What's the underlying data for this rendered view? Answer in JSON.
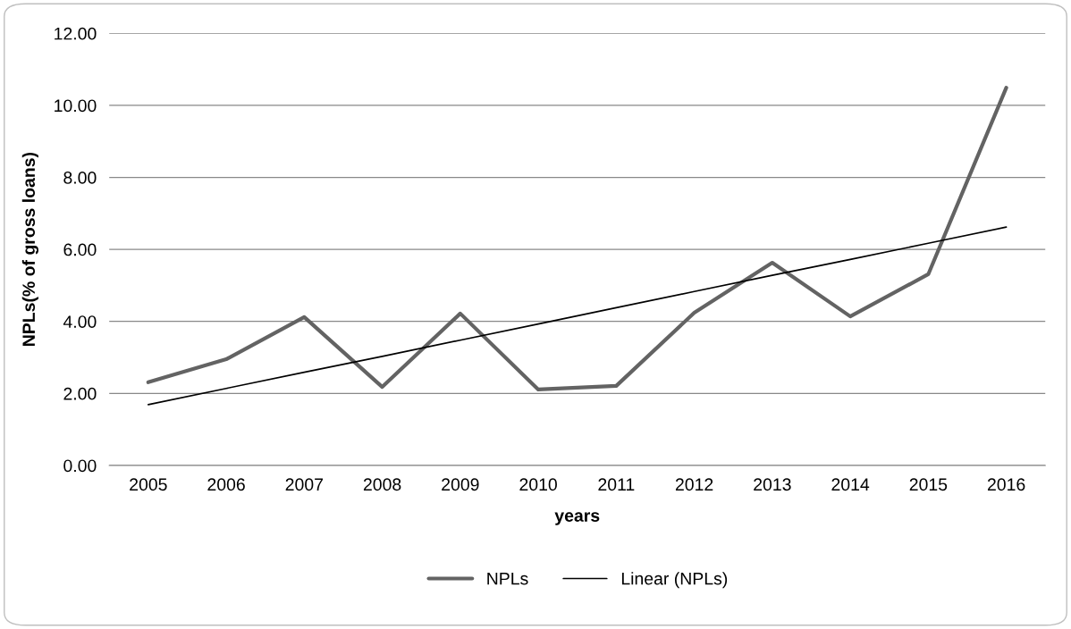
{
  "chart_data": {
    "type": "line",
    "xlabel": "years",
    "ylabel": "NPLs(% of gross loans)",
    "categories": [
      "2005",
      "2006",
      "2007",
      "2008",
      "2009",
      "2010",
      "2011",
      "2012",
      "2013",
      "2014",
      "2015",
      "2016"
    ],
    "series": [
      {
        "name": "NPLs",
        "color": "#636363",
        "values": [
          2.31,
          2.95,
          4.12,
          2.18,
          4.22,
          2.11,
          2.21,
          4.24,
          5.63,
          4.14,
          5.31,
          10.49
        ]
      },
      {
        "name": "Linear (NPLs)",
        "color": "#000000",
        "values": [
          1.69,
          2.14,
          2.59,
          3.03,
          3.48,
          3.93,
          4.38,
          4.83,
          5.28,
          5.72,
          6.17,
          6.62
        ]
      }
    ],
    "ylim": [
      0,
      12
    ],
    "yticks": [
      {
        "value": 0,
        "label": "0.00"
      },
      {
        "value": 2,
        "label": "2.00"
      },
      {
        "value": 4,
        "label": "4.00"
      },
      {
        "value": 6,
        "label": "6.00"
      },
      {
        "value": 8,
        "label": "8.00"
      },
      {
        "value": 10,
        "label": "10.00"
      },
      {
        "value": 12,
        "label": "12.00"
      }
    ],
    "grid": "y",
    "legend": "bottom",
    "marker": "none",
    "line_style": "solid"
  }
}
